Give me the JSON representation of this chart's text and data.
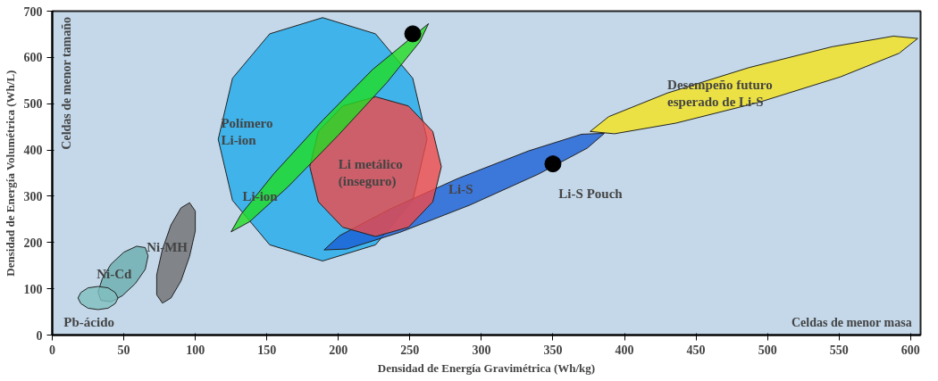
{
  "chart_data": {
    "type": "scatter",
    "xlabel": "Densidad de Energía Gravimétrica (Wh/kg)",
    "ylabel": "Densidad de Energía Volumétrica (Wh/L)",
    "xlim": [
      0,
      607
    ],
    "ylim": [
      0,
      700
    ],
    "xticks": [
      0,
      50,
      100,
      150,
      200,
      250,
      300,
      350,
      400,
      450,
      500,
      550,
      600
    ],
    "yticks": [
      0,
      100,
      200,
      300,
      400,
      500,
      600,
      700
    ],
    "grid": false,
    "series": [
      {
        "type": "area",
        "name": "Polímero\nLi-ion",
        "color": "#1eaaea",
        "x": [
          262,
          252,
          226,
          189,
          152,
          126,
          116,
          126,
          152,
          189,
          226,
          252
        ],
        "values": [
          423,
          555,
          651,
          686,
          651,
          555,
          423,
          291,
          195,
          160,
          195,
          291
        ]
      },
      {
        "type": "area",
        "name": "Li-S",
        "color": "#1a5fd6",
        "x": [
          386,
          374,
          340,
          292,
          243,
          206,
          190,
          201,
          236,
          284,
          333,
          370
        ],
        "values": [
          436,
          404,
          348,
          281,
          222,
          186,
          184,
          215,
          272,
          339,
          398,
          434
        ]
      },
      {
        "type": "area",
        "name": "Desempeño futuro\nesperado de Li-S",
        "color": "#f5e31a",
        "x": [
          605,
          592,
          551,
          494,
          436,
          393,
          376,
          389,
          430,
          487,
          545,
          588
        ],
        "values": [
          641,
          609,
          558,
          503,
          458,
          435,
          440,
          472,
          523,
          578,
          623,
          646
        ]
      },
      {
        "type": "area",
        "name": "Li metálico\n(inseguro)",
        "color": "#f04a4a",
        "x": [
          272,
          266,
          249,
          226,
          203,
          186,
          180,
          186,
          203,
          226,
          249,
          266
        ],
        "values": [
          364,
          440,
          495,
          515,
          495,
          440,
          364,
          288,
          233,
          213,
          233,
          288
        ]
      },
      {
        "type": "area",
        "name": "Li-ion",
        "color": "#22dd22",
        "x": [
          263,
          257,
          234,
          200,
          165,
          138,
          125,
          132,
          155,
          189,
          224
        ],
        "values": [
          673,
          634,
          546,
          432,
          321,
          245,
          223,
          261,
          349,
          464,
          574
        ]
      },
      {
        "type": "area",
        "name": "Ni-MH",
        "color": "#707070",
        "x": [
          96,
          100,
          100,
          96,
          90,
          83,
          77,
          73,
          73,
          77,
          83,
          90
        ],
        "values": [
          286,
          268,
          225,
          170,
          117,
          80,
          69,
          87,
          130,
          185,
          238,
          275
        ]
      },
      {
        "type": "area",
        "name": "Ni-Cd",
        "color": "#6aaeae",
        "x": [
          65,
          67,
          65,
          58,
          49,
          41,
          34,
          32,
          35,
          41,
          50,
          59
        ],
        "values": [
          189,
          171,
          142,
          111,
          85,
          72,
          75,
          93,
          122,
          153,
          179,
          192
        ]
      },
      {
        "type": "area",
        "name": "Pb-ácido",
        "color": "#7fbfbf",
        "x": [
          46,
          44,
          39,
          32,
          25,
          20,
          18,
          20,
          25,
          32,
          39,
          44
        ],
        "values": [
          80,
          92,
          102,
          105,
          102,
          92,
          80,
          68,
          58,
          55,
          58,
          68
        ]
      },
      {
        "color": "#000000",
        "marker": "circle",
        "x": [
          252
        ],
        "values": [
          651
        ]
      },
      {
        "name": "Li-S Pouch",
        "color": "#000000",
        "marker": "circle",
        "x": [
          350
        ],
        "values": [
          370
        ]
      }
    ],
    "annotations": [
      "Celdas de menor tamaño",
      "Celdas de menor masa"
    ]
  }
}
